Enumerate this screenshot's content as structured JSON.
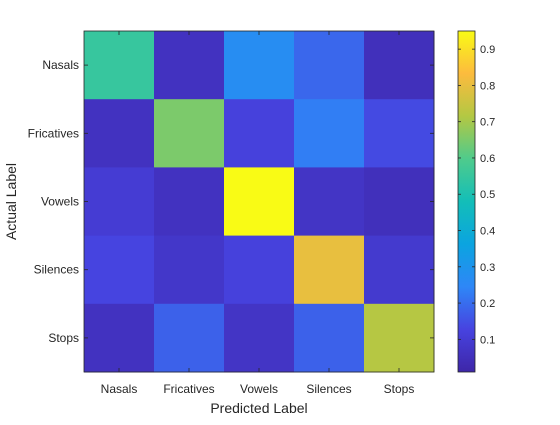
{
  "chart_data": {
    "type": "heatmap",
    "title": "",
    "xlabel": "Predicted Label",
    "ylabel": "Actual Label",
    "x_categories": [
      "Nasals",
      "Fricatives",
      "Vowels",
      "Silences",
      "Stops"
    ],
    "y_categories": [
      "Nasals",
      "Fricatives",
      "Vowels",
      "Silences",
      "Stops"
    ],
    "values": [
      [
        0.55,
        0.06,
        0.27,
        0.19,
        0.05
      ],
      [
        0.06,
        0.65,
        0.12,
        0.23,
        0.14
      ],
      [
        0.1,
        0.06,
        0.95,
        0.07,
        0.05
      ],
      [
        0.13,
        0.08,
        0.12,
        0.8,
        0.09
      ],
      [
        0.06,
        0.18,
        0.07,
        0.18,
        0.72
      ]
    ],
    "colormap": "parula",
    "clim": [
      0.01,
      0.95
    ],
    "colorbar": {
      "ticks": [
        0.1,
        0.2,
        0.3,
        0.4,
        0.5,
        0.6,
        0.7,
        0.8,
        0.9
      ],
      "tick_labels": [
        "0.1",
        "0.2",
        "0.3",
        "0.4",
        "0.5",
        "0.6",
        "0.7",
        "0.8",
        "0.9"
      ],
      "placement": "right"
    },
    "grid": false
  }
}
